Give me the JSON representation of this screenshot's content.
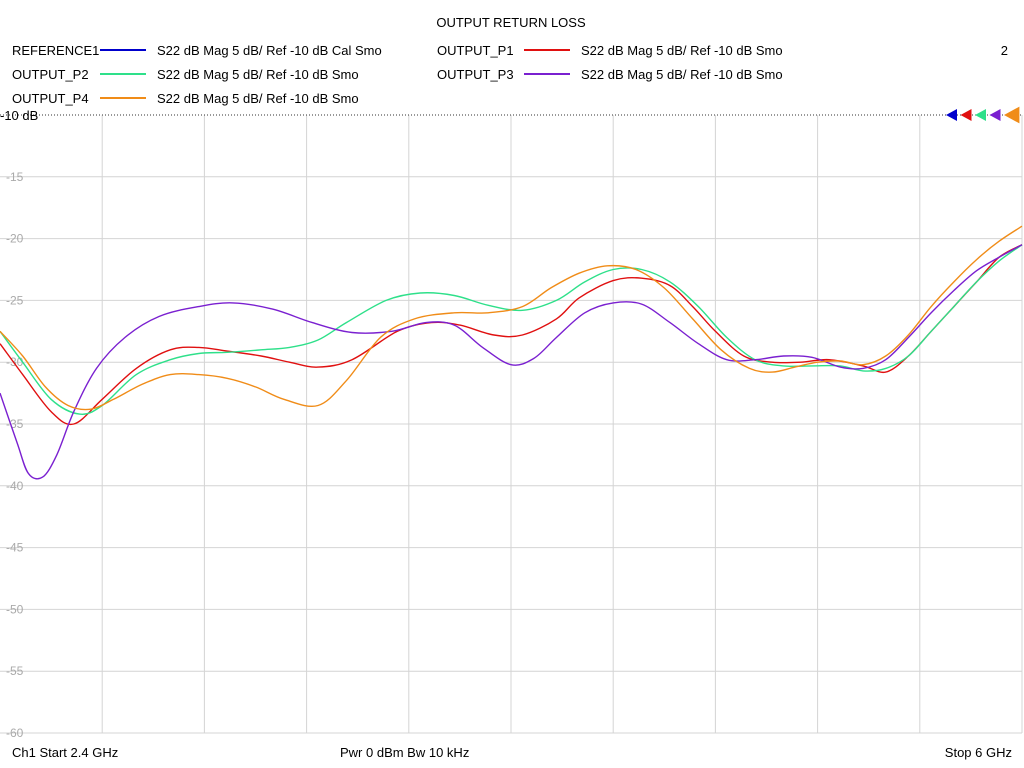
{
  "chart_data": {
    "type": "line",
    "title": "OUTPUT RETURN LOSS",
    "marker_number": "2",
    "ylim": [
      -60,
      -10
    ],
    "y_ref_label": "-10 dB",
    "yticks": [
      {
        "value": -15,
        "label": "-15"
      },
      {
        "value": -20,
        "label": "-20"
      },
      {
        "value": -25,
        "label": "-25"
      },
      {
        "value": -30,
        "label": "-30"
      },
      {
        "value": -35,
        "label": "-35"
      },
      {
        "value": -40,
        "label": "-40"
      },
      {
        "value": -45,
        "label": "-45"
      },
      {
        "value": -50,
        "label": "-50"
      },
      {
        "value": -55,
        "label": "-55"
      },
      {
        "value": -60,
        "label": "-60"
      }
    ],
    "xlim": [
      2.4,
      6.0
    ],
    "x_divisions": 10,
    "grid": true,
    "x_unit": "GHz",
    "series": [
      {
        "name": "REFERENCE1",
        "desc": "S22  dB Mag  5 dB/ Ref -10 dB  Cal Smo",
        "color": "#0000cc",
        "x": [],
        "y": []
      },
      {
        "name": "OUTPUT_P1",
        "desc": "S22  dB Mag  5 dB/ Ref -10 dB  Smo",
        "color": "#e01010",
        "x": [
          2.4,
          2.48,
          2.58,
          2.66,
          2.76,
          2.88,
          3.0,
          3.1,
          3.2,
          3.32,
          3.42,
          3.52,
          3.64,
          3.8,
          3.92,
          4.02,
          4.14,
          4.24,
          4.36,
          4.44,
          4.56,
          4.66,
          4.76,
          4.84,
          4.92,
          5.02,
          5.12,
          5.22,
          5.32,
          5.44,
          5.52,
          5.6,
          5.68,
          5.76,
          5.84,
          5.92,
          6.0
        ],
        "y": [
          -28.5,
          -31,
          -34,
          -35,
          -33,
          -30.5,
          -29,
          -28.8,
          -29.1,
          -29.5,
          -30,
          -30.4,
          -29.8,
          -27.5,
          -26.8,
          -27,
          -27.8,
          -27.8,
          -26.5,
          -24.8,
          -23.4,
          -23.2,
          -23.8,
          -25.5,
          -27.5,
          -29.5,
          -30,
          -30,
          -29.8,
          -30.3,
          -30.8,
          -29.5,
          -27.5,
          -25.5,
          -23.5,
          -21.5,
          -20.5
        ]
      },
      {
        "name": "OUTPUT_P2",
        "desc": "S22  dB Mag  5 dB/ Ref -10 dB  Smo",
        "color": "#2ee08a",
        "x": [
          2.4,
          2.48,
          2.58,
          2.68,
          2.76,
          2.88,
          3.0,
          3.1,
          3.2,
          3.32,
          3.42,
          3.52,
          3.62,
          3.76,
          3.88,
          4.0,
          4.12,
          4.24,
          4.36,
          4.46,
          4.56,
          4.66,
          4.76,
          4.86,
          4.96,
          5.06,
          5.16,
          5.26,
          5.36,
          5.44,
          5.52,
          5.6,
          5.68,
          5.76,
          5.84,
          5.92,
          6.0
        ],
        "y": [
          -27.5,
          -30,
          -33,
          -34.2,
          -33.5,
          -31,
          -29.8,
          -29.3,
          -29.2,
          -29,
          -28.8,
          -28.2,
          -26.8,
          -25,
          -24.4,
          -24.6,
          -25.4,
          -25.8,
          -25,
          -23.5,
          -22.5,
          -22.5,
          -23.5,
          -25.5,
          -28,
          -29.8,
          -30.3,
          -30.3,
          -30.3,
          -30.7,
          -30.5,
          -29.5,
          -27.5,
          -25.5,
          -23.5,
          -21.8,
          -20.5
        ]
      },
      {
        "name": "OUTPUT_P3",
        "desc": "S22  dB Mag  5 dB/ Ref -10 dB  Smo",
        "color": "#7a20d0",
        "x": [
          2.4,
          2.46,
          2.5,
          2.55,
          2.6,
          2.66,
          2.74,
          2.84,
          2.96,
          3.1,
          3.22,
          3.36,
          3.5,
          3.64,
          3.78,
          3.9,
          4.0,
          4.1,
          4.2,
          4.28,
          4.36,
          4.46,
          4.56,
          4.66,
          4.76,
          4.86,
          4.96,
          5.06,
          5.16,
          5.26,
          5.36,
          5.44,
          5.52,
          5.6,
          5.68,
          5.76,
          5.84,
          5.92,
          6.0
        ],
        "y": [
          -32.5,
          -36.5,
          -39,
          -39.3,
          -37.5,
          -34,
          -30.5,
          -28,
          -26.3,
          -25.5,
          -25.2,
          -25.7,
          -26.8,
          -27.6,
          -27.5,
          -26.8,
          -27,
          -28.8,
          -30.2,
          -29.7,
          -28,
          -26,
          -25.2,
          -25.3,
          -26.8,
          -28.5,
          -29.8,
          -29.8,
          -29.5,
          -29.6,
          -30.4,
          -30.5,
          -29.8,
          -28,
          -26,
          -24.2,
          -22.6,
          -21.5,
          -20.5
        ]
      },
      {
        "name": "OUTPUT_P4",
        "desc": "S22  dB Mag  5 dB/ Ref -10 dB  Smo",
        "color": "#f08c18",
        "x": [
          2.4,
          2.48,
          2.56,
          2.64,
          2.72,
          2.8,
          2.9,
          3.0,
          3.1,
          3.2,
          3.3,
          3.4,
          3.52,
          3.62,
          3.74,
          3.86,
          4.0,
          4.12,
          4.24,
          4.34,
          4.44,
          4.54,
          4.64,
          4.74,
          4.84,
          4.94,
          5.04,
          5.12,
          5.2,
          5.28,
          5.36,
          5.44,
          5.52,
          5.6,
          5.68,
          5.76,
          5.84,
          5.92,
          6.0
        ],
        "y": [
          -27.5,
          -29.5,
          -32,
          -33.5,
          -33.8,
          -33,
          -31.8,
          -31,
          -31,
          -31.3,
          -32,
          -33,
          -33.5,
          -31.5,
          -28,
          -26.5,
          -26,
          -26,
          -25.5,
          -24,
          -22.8,
          -22.2,
          -22.5,
          -24,
          -26.5,
          -29,
          -30.5,
          -30.8,
          -30.4,
          -30,
          -29.9,
          -30.2,
          -29.5,
          -27.8,
          -25.5,
          -23.5,
          -21.7,
          -20.2,
          -19
        ]
      }
    ],
    "footer": {
      "left": "Ch1  Start  2.4 GHz",
      "center": "Pwr  0 dBm  Bw  10 kHz",
      "right": "Stop  6 GHz"
    }
  }
}
